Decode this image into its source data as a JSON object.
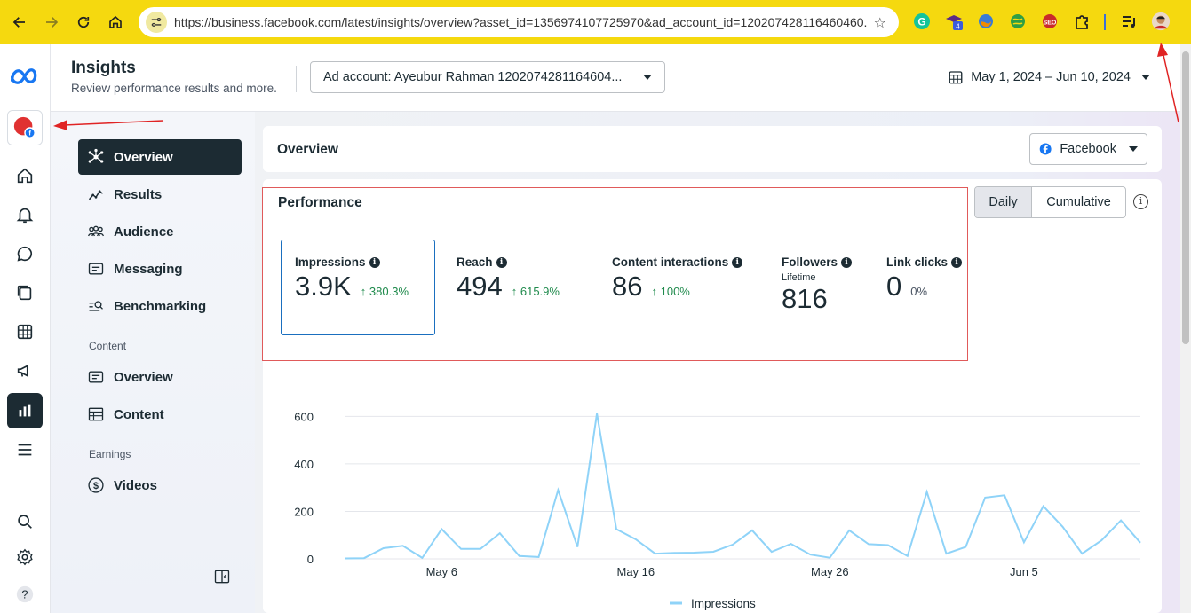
{
  "browser": {
    "url": "https://business.facebook.com/latest/insights/overview?asset_id=1356974107725970&ad_account_id=120207428116460460...",
    "extension_badge": "4"
  },
  "header": {
    "title": "Insights",
    "subtitle": "Review performance results and more.",
    "ad_account": "Ad account: Ayeubur Rahman 1202074281164604...",
    "date_range": "May 1, 2024 – Jun 10, 2024"
  },
  "sidenav": {
    "items": [
      {
        "label": "Overview",
        "icon": "hub-icon"
      },
      {
        "label": "Results",
        "icon": "results-icon"
      },
      {
        "label": "Audience",
        "icon": "audience-icon"
      },
      {
        "label": "Messaging",
        "icon": "messaging-icon"
      },
      {
        "label": "Benchmarking",
        "icon": "benchmarking-icon"
      }
    ],
    "content_section": "Content",
    "content_items": [
      {
        "label": "Overview",
        "icon": "content-overview-icon"
      },
      {
        "label": "Content",
        "icon": "table-icon"
      }
    ],
    "earnings_section": "Earnings",
    "earnings_items": [
      {
        "label": "Videos",
        "icon": "dollar-icon"
      }
    ]
  },
  "overview": {
    "title": "Overview",
    "platform": "Facebook"
  },
  "performance": {
    "title": "Performance",
    "toggle_daily": "Daily",
    "toggle_cumulative": "Cumulative",
    "metrics": [
      {
        "label": "Impressions",
        "value": "3.9K",
        "change": "380.3%"
      },
      {
        "label": "Reach",
        "value": "494",
        "change": "615.9%"
      },
      {
        "label": "Content interactions",
        "value": "86",
        "change": "100%"
      },
      {
        "label": "Followers",
        "sublabel": "Lifetime",
        "value": "816"
      },
      {
        "label": "Link clicks",
        "value": "0",
        "change": "0%"
      }
    ]
  },
  "chart_data": {
    "type": "line",
    "series": [
      {
        "name": "Impressions",
        "color": "#8fd3f8",
        "values": [
          2,
          3,
          45,
          55,
          4,
          125,
          42,
          42,
          108,
          12,
          8,
          290,
          50,
          612,
          125,
          82,
          22,
          25,
          26,
          30,
          60,
          120,
          30,
          63,
          18,
          5,
          120,
          62,
          58,
          12,
          282,
          22,
          50,
          258,
          268,
          70,
          222,
          135,
          22,
          78,
          162,
          68
        ]
      }
    ],
    "x_tick_labels": [
      "May 6",
      "May 16",
      "May 26",
      "Jun 5"
    ],
    "x_tick_indices": [
      5,
      15,
      25,
      35
    ],
    "y_ticks": [
      0,
      200,
      400,
      600
    ],
    "ylim": [
      0,
      650
    ],
    "grid": true,
    "legend": "bottom-center"
  },
  "colors": {
    "accent": "#1c2b33",
    "positive": "#1f8a4c",
    "line": "#8fd3f8",
    "browser_bar": "#f5d90f",
    "highlight": "#e05a5a"
  }
}
